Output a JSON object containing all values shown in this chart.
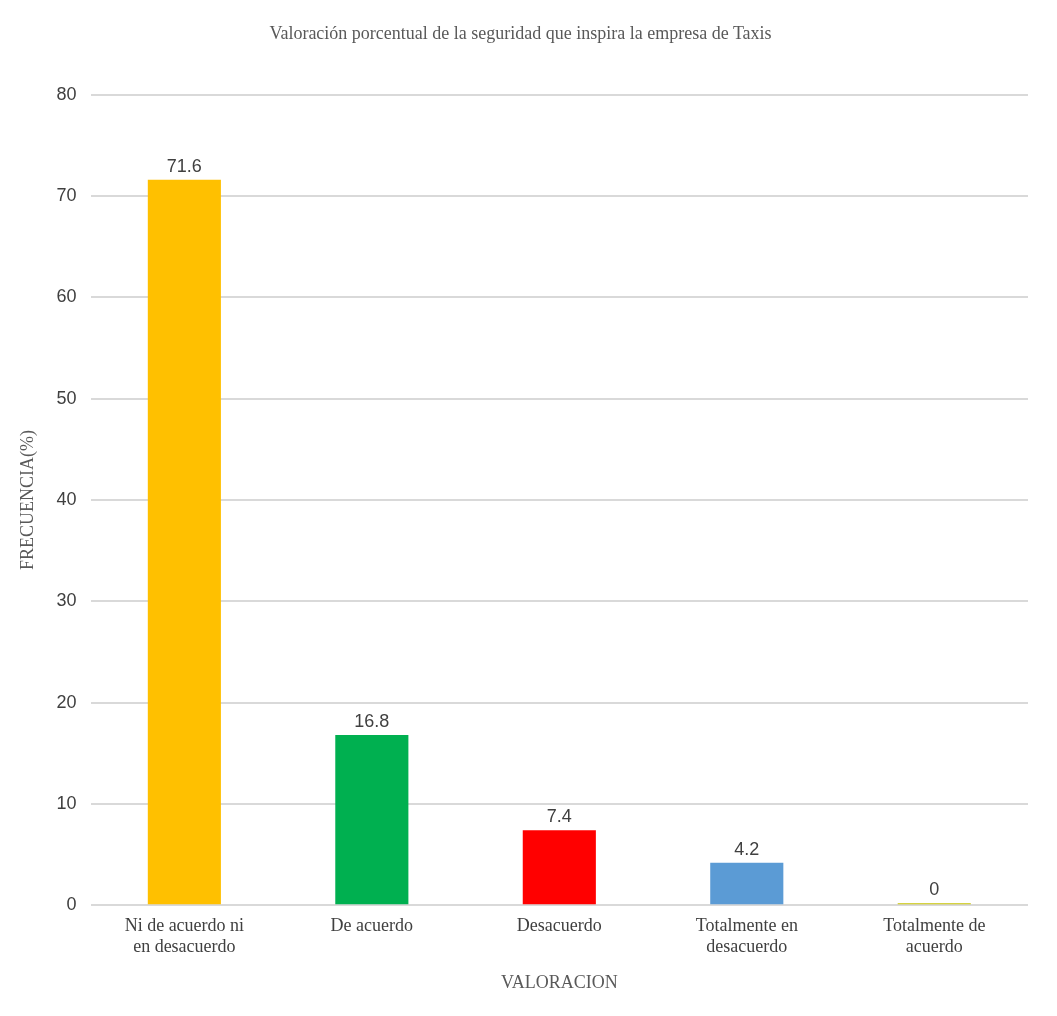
{
  "chart_data": {
    "type": "bar",
    "title": "Valoración porcentual de la seguridad que inspira la empresa de Taxis",
    "xlabel": "VALORACION",
    "ylabel": "FRECUENCIA(%)",
    "categories": [
      "Ni de acuerdo ni en desacuerdo",
      "De acuerdo",
      "Desacuerdo",
      "Totalmente en desacuerdo",
      "Totalmente de acuerdo"
    ],
    "values": [
      71.6,
      16.8,
      7.4,
      4.2,
      0
    ],
    "colors": [
      "#ffc000",
      "#00b050",
      "#ff0000",
      "#5b9bd5",
      "#c9c400"
    ],
    "ylim": [
      0,
      80
    ],
    "yticks": [
      0,
      10,
      20,
      30,
      40,
      50,
      60,
      70,
      80
    ],
    "grid": "y",
    "data_labels": true,
    "legend": false
  }
}
